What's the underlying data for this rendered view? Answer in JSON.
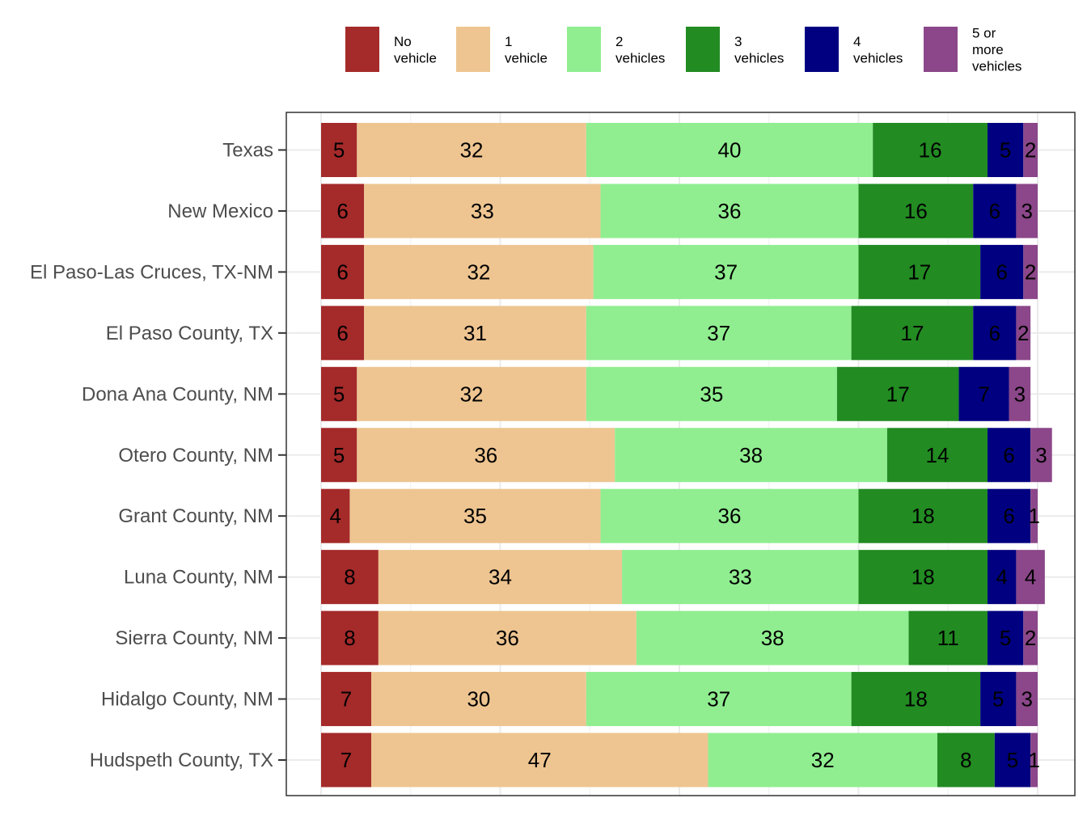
{
  "chart_data": {
    "type": "bar",
    "orientation": "horizontal",
    "stacked": true,
    "normalized": "percent",
    "title": "",
    "xlabel": "",
    "ylabel": "",
    "xlim": [
      0,
      100
    ],
    "grid": true,
    "legend_position": "top",
    "categories": [
      "Texas",
      "New Mexico",
      "El Paso-Las Cruces, TX-NM",
      "El Paso County, TX",
      "Dona Ana County, NM",
      "Otero County, NM",
      "Grant County, NM",
      "Luna County, NM",
      "Sierra County, NM",
      "Hidalgo County, NM",
      "Hudspeth County, TX"
    ],
    "series": [
      {
        "name": "No vehicle",
        "legend_lines": [
          "No",
          "vehicle"
        ],
        "color": "#A52A2A",
        "values": [
          5,
          6,
          6,
          6,
          5,
          5,
          4,
          8,
          8,
          7,
          7
        ]
      },
      {
        "name": "1 vehicle",
        "legend_lines": [
          "1",
          "vehicle"
        ],
        "color": "#EEC591",
        "values": [
          32,
          33,
          32,
          31,
          32,
          36,
          35,
          34,
          36,
          30,
          47
        ]
      },
      {
        "name": "2 vehicles",
        "legend_lines": [
          "2",
          "vehicles"
        ],
        "color": "#90EE90",
        "values": [
          40,
          36,
          37,
          37,
          35,
          38,
          36,
          33,
          38,
          37,
          32
        ]
      },
      {
        "name": "3 vehicles",
        "legend_lines": [
          "3",
          "vehicles"
        ],
        "color": "#228B22",
        "values": [
          16,
          16,
          17,
          17,
          17,
          14,
          18,
          18,
          11,
          18,
          8
        ]
      },
      {
        "name": "4 vehicles",
        "legend_lines": [
          "4",
          "vehicles"
        ],
        "color": "#000080",
        "values": [
          5,
          6,
          6,
          6,
          7,
          6,
          6,
          4,
          5,
          5,
          5
        ]
      },
      {
        "name": "5 or more vehicles",
        "legend_lines": [
          "5 or",
          "more",
          "vehicles"
        ],
        "color": "#8B4789",
        "values": [
          2,
          3,
          2,
          2,
          3,
          3,
          1,
          4,
          2,
          3,
          1
        ]
      }
    ]
  }
}
